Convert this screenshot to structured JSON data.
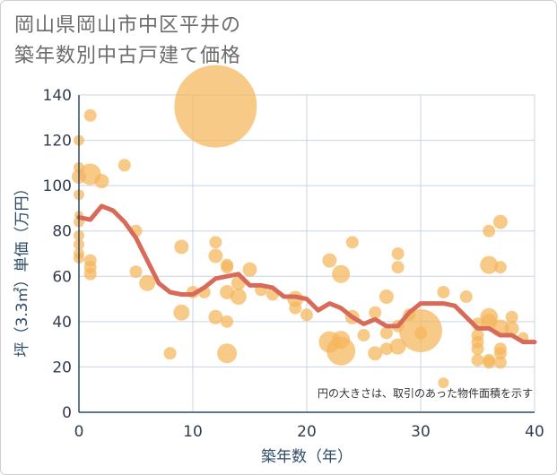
{
  "title_line1": "岡山県岡山市中区平井の",
  "title_line2": "築年数別中古戸建て価格",
  "colors": {
    "bubble": "#f5b65a",
    "line": "#d86a5a",
    "grid": "#c8d3e6",
    "axis": "#2d4a66"
  },
  "chart_data": {
    "type": "scatter",
    "xlabel": "築年数（年）",
    "ylabel": "坪（3.3㎡）単価（万円）",
    "note": "円の大きさは、取引のあった物件面積を示す",
    "xlim": [
      0,
      40
    ],
    "ylim": [
      0,
      140
    ],
    "xticks": [
      0,
      10,
      20,
      30,
      40
    ],
    "yticks": [
      0,
      20,
      40,
      60,
      80,
      100,
      120,
      140
    ],
    "grid": true,
    "points": [
      {
        "x": 0,
        "y": 120,
        "s": 6
      },
      {
        "x": 0,
        "y": 108,
        "s": 6
      },
      {
        "x": 0,
        "y": 104,
        "s": 8
      },
      {
        "x": 0,
        "y": 96,
        "s": 6
      },
      {
        "x": 0,
        "y": 87,
        "s": 5
      },
      {
        "x": 0,
        "y": 84,
        "s": 6
      },
      {
        "x": 0,
        "y": 78,
        "s": 6
      },
      {
        "x": 0,
        "y": 74,
        "s": 6
      },
      {
        "x": 0,
        "y": 70,
        "s": 6
      },
      {
        "x": 0,
        "y": 68,
        "s": 6
      },
      {
        "x": 1,
        "y": 131,
        "s": 7
      },
      {
        "x": 1,
        "y": 105,
        "s": 12
      },
      {
        "x": 1,
        "y": 67,
        "s": 7
      },
      {
        "x": 1,
        "y": 64,
        "s": 7
      },
      {
        "x": 1,
        "y": 61,
        "s": 7
      },
      {
        "x": 2,
        "y": 102,
        "s": 8
      },
      {
        "x": 4,
        "y": 109,
        "s": 7
      },
      {
        "x": 5,
        "y": 80,
        "s": 7
      },
      {
        "x": 5,
        "y": 62,
        "s": 7
      },
      {
        "x": 6,
        "y": 57,
        "s": 9
      },
      {
        "x": 8,
        "y": 26,
        "s": 7
      },
      {
        "x": 9,
        "y": 73,
        "s": 8
      },
      {
        "x": 9,
        "y": 44,
        "s": 9
      },
      {
        "x": 10,
        "y": 53,
        "s": 7
      },
      {
        "x": 11,
        "y": 53,
        "s": 7
      },
      {
        "x": 12,
        "y": 135,
        "s": 46
      },
      {
        "x": 12,
        "y": 75,
        "s": 7
      },
      {
        "x": 12,
        "y": 69,
        "s": 8
      },
      {
        "x": 12,
        "y": 42,
        "s": 8
      },
      {
        "x": 13,
        "y": 65,
        "s": 7
      },
      {
        "x": 13,
        "y": 64,
        "s": 7
      },
      {
        "x": 13,
        "y": 53,
        "s": 8
      },
      {
        "x": 13,
        "y": 40,
        "s": 7
      },
      {
        "x": 13,
        "y": 26,
        "s": 11
      },
      {
        "x": 14,
        "y": 57,
        "s": 8
      },
      {
        "x": 14,
        "y": 51,
        "s": 9
      },
      {
        "x": 15,
        "y": 63,
        "s": 8
      },
      {
        "x": 16,
        "y": 54,
        "s": 7
      },
      {
        "x": 17,
        "y": 52,
        "s": 7
      },
      {
        "x": 19,
        "y": 50,
        "s": 9
      },
      {
        "x": 19,
        "y": 46,
        "s": 7
      },
      {
        "x": 20,
        "y": 43,
        "s": 7
      },
      {
        "x": 22,
        "y": 67,
        "s": 8
      },
      {
        "x": 22,
        "y": 31,
        "s": 12
      },
      {
        "x": 23,
        "y": 61,
        "s": 10
      },
      {
        "x": 23,
        "y": 32,
        "s": 10
      },
      {
        "x": 23,
        "y": 27,
        "s": 16
      },
      {
        "x": 24,
        "y": 75,
        "s": 7
      },
      {
        "x": 24,
        "y": 42,
        "s": 8
      },
      {
        "x": 25,
        "y": 34,
        "s": 7
      },
      {
        "x": 26,
        "y": 44,
        "s": 7
      },
      {
        "x": 26,
        "y": 26,
        "s": 8
      },
      {
        "x": 27,
        "y": 51,
        "s": 8
      },
      {
        "x": 27,
        "y": 35,
        "s": 7
      },
      {
        "x": 27,
        "y": 28,
        "s": 7
      },
      {
        "x": 28,
        "y": 70,
        "s": 7
      },
      {
        "x": 28,
        "y": 64,
        "s": 7
      },
      {
        "x": 28,
        "y": 38,
        "s": 7
      },
      {
        "x": 28,
        "y": 29,
        "s": 9
      },
      {
        "x": 29,
        "y": 43,
        "s": 7
      },
      {
        "x": 30,
        "y": 36,
        "s": 24
      },
      {
        "x": 30,
        "y": 35,
        "s": 7
      },
      {
        "x": 32,
        "y": 53,
        "s": 7
      },
      {
        "x": 32,
        "y": 13,
        "s": 6
      },
      {
        "x": 34,
        "y": 51,
        "s": 7
      },
      {
        "x": 35,
        "y": 39,
        "s": 7
      },
      {
        "x": 35,
        "y": 34,
        "s": 7
      },
      {
        "x": 35,
        "y": 31,
        "s": 7
      },
      {
        "x": 35,
        "y": 28,
        "s": 7
      },
      {
        "x": 35,
        "y": 23,
        "s": 7
      },
      {
        "x": 36,
        "y": 80,
        "s": 7
      },
      {
        "x": 36,
        "y": 65,
        "s": 10
      },
      {
        "x": 36,
        "y": 42,
        "s": 10
      },
      {
        "x": 36,
        "y": 40,
        "s": 9
      },
      {
        "x": 36,
        "y": 23,
        "s": 7
      },
      {
        "x": 36,
        "y": 22,
        "s": 7
      },
      {
        "x": 37,
        "y": 84,
        "s": 8
      },
      {
        "x": 37,
        "y": 64,
        "s": 7
      },
      {
        "x": 37,
        "y": 37,
        "s": 10
      },
      {
        "x": 37,
        "y": 28,
        "s": 7
      },
      {
        "x": 37,
        "y": 26,
        "s": 7
      },
      {
        "x": 37,
        "y": 22,
        "s": 7
      },
      {
        "x": 38,
        "y": 42,
        "s": 7
      },
      {
        "x": 38,
        "y": 37,
        "s": 8
      },
      {
        "x": 39,
        "y": 33,
        "s": 6
      }
    ],
    "trend": [
      {
        "x": 0,
        "y": 86
      },
      {
        "x": 1,
        "y": 85
      },
      {
        "x": 2,
        "y": 91
      },
      {
        "x": 3,
        "y": 89
      },
      {
        "x": 4,
        "y": 84
      },
      {
        "x": 5,
        "y": 77
      },
      {
        "x": 6,
        "y": 67
      },
      {
        "x": 7,
        "y": 57
      },
      {
        "x": 8,
        "y": 53
      },
      {
        "x": 9,
        "y": 52
      },
      {
        "x": 10,
        "y": 52
      },
      {
        "x": 11,
        "y": 55
      },
      {
        "x": 12,
        "y": 59
      },
      {
        "x": 13,
        "y": 60
      },
      {
        "x": 14,
        "y": 61
      },
      {
        "x": 15,
        "y": 56
      },
      {
        "x": 16,
        "y": 56
      },
      {
        "x": 17,
        "y": 55
      },
      {
        "x": 18,
        "y": 51
      },
      {
        "x": 19,
        "y": 51
      },
      {
        "x": 20,
        "y": 50
      },
      {
        "x": 21,
        "y": 45
      },
      {
        "x": 22,
        "y": 48
      },
      {
        "x": 23,
        "y": 46
      },
      {
        "x": 24,
        "y": 42
      },
      {
        "x": 25,
        "y": 39
      },
      {
        "x": 26,
        "y": 41
      },
      {
        "x": 27,
        "y": 38
      },
      {
        "x": 28,
        "y": 38
      },
      {
        "x": 29,
        "y": 44
      },
      {
        "x": 30,
        "y": 48
      },
      {
        "x": 31,
        "y": 48
      },
      {
        "x": 32,
        "y": 48
      },
      {
        "x": 33,
        "y": 47
      },
      {
        "x": 34,
        "y": 42
      },
      {
        "x": 35,
        "y": 37
      },
      {
        "x": 36,
        "y": 37
      },
      {
        "x": 37,
        "y": 34
      },
      {
        "x": 38,
        "y": 34
      },
      {
        "x": 39,
        "y": 31
      },
      {
        "x": 40,
        "y": 31
      }
    ]
  }
}
